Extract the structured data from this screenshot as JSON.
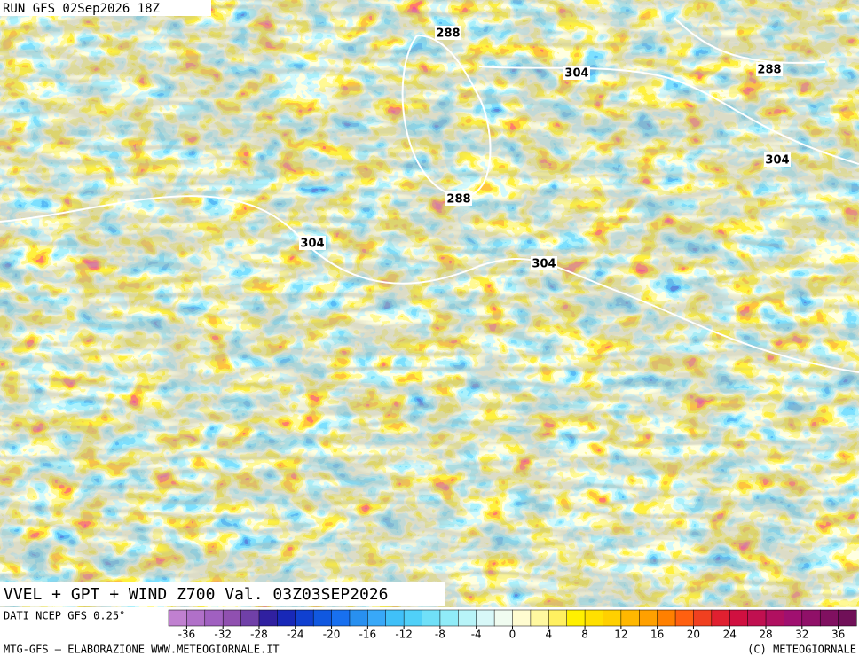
{
  "header": {
    "run": "RUN GFS 02Sep2026 18Z",
    "title": "VVEL + GPT + WIND Z700 Val. 03Z03SEP2026"
  },
  "map": {
    "contour_labels": [
      "288",
      "304",
      "288",
      "304",
      "288",
      "304",
      "304"
    ]
  },
  "colorbar": {
    "source": "DATI NCEP GFS 0.25°",
    "ticks": [
      -36,
      -32,
      -28,
      -24,
      -20,
      -16,
      -12,
      -8,
      -4,
      0,
      4,
      8,
      12,
      16,
      20,
      24,
      28,
      32,
      36
    ],
    "colors": [
      "#c080d0",
      "#b070c8",
      "#a060c0",
      "#9050b0",
      "#7040a8",
      "#3020a0",
      "#1828b8",
      "#1040d0",
      "#1058e0",
      "#1870f0",
      "#2890f0",
      "#38a8f8",
      "#40c0f8",
      "#50d0f8",
      "#70e0f8",
      "#90ecf8",
      "#b8f4f8",
      "#d8f8f8",
      "#f0fcf0",
      "#fffcd0",
      "#fff8a0",
      "#fff060",
      "#fff000",
      "#ffe000",
      "#ffd000",
      "#ffb800",
      "#ffa000",
      "#ff8000",
      "#ff6010",
      "#f04020",
      "#e02030",
      "#d01040",
      "#c01050",
      "#b01060",
      "#a01070",
      "#901068",
      "#801060",
      "#701058"
    ]
  },
  "footer": {
    "left": "MTG-GFS – ELABORAZIONE WWW.METEOGIORNALE.IT",
    "right": "(C) METEOGIORNALE"
  }
}
